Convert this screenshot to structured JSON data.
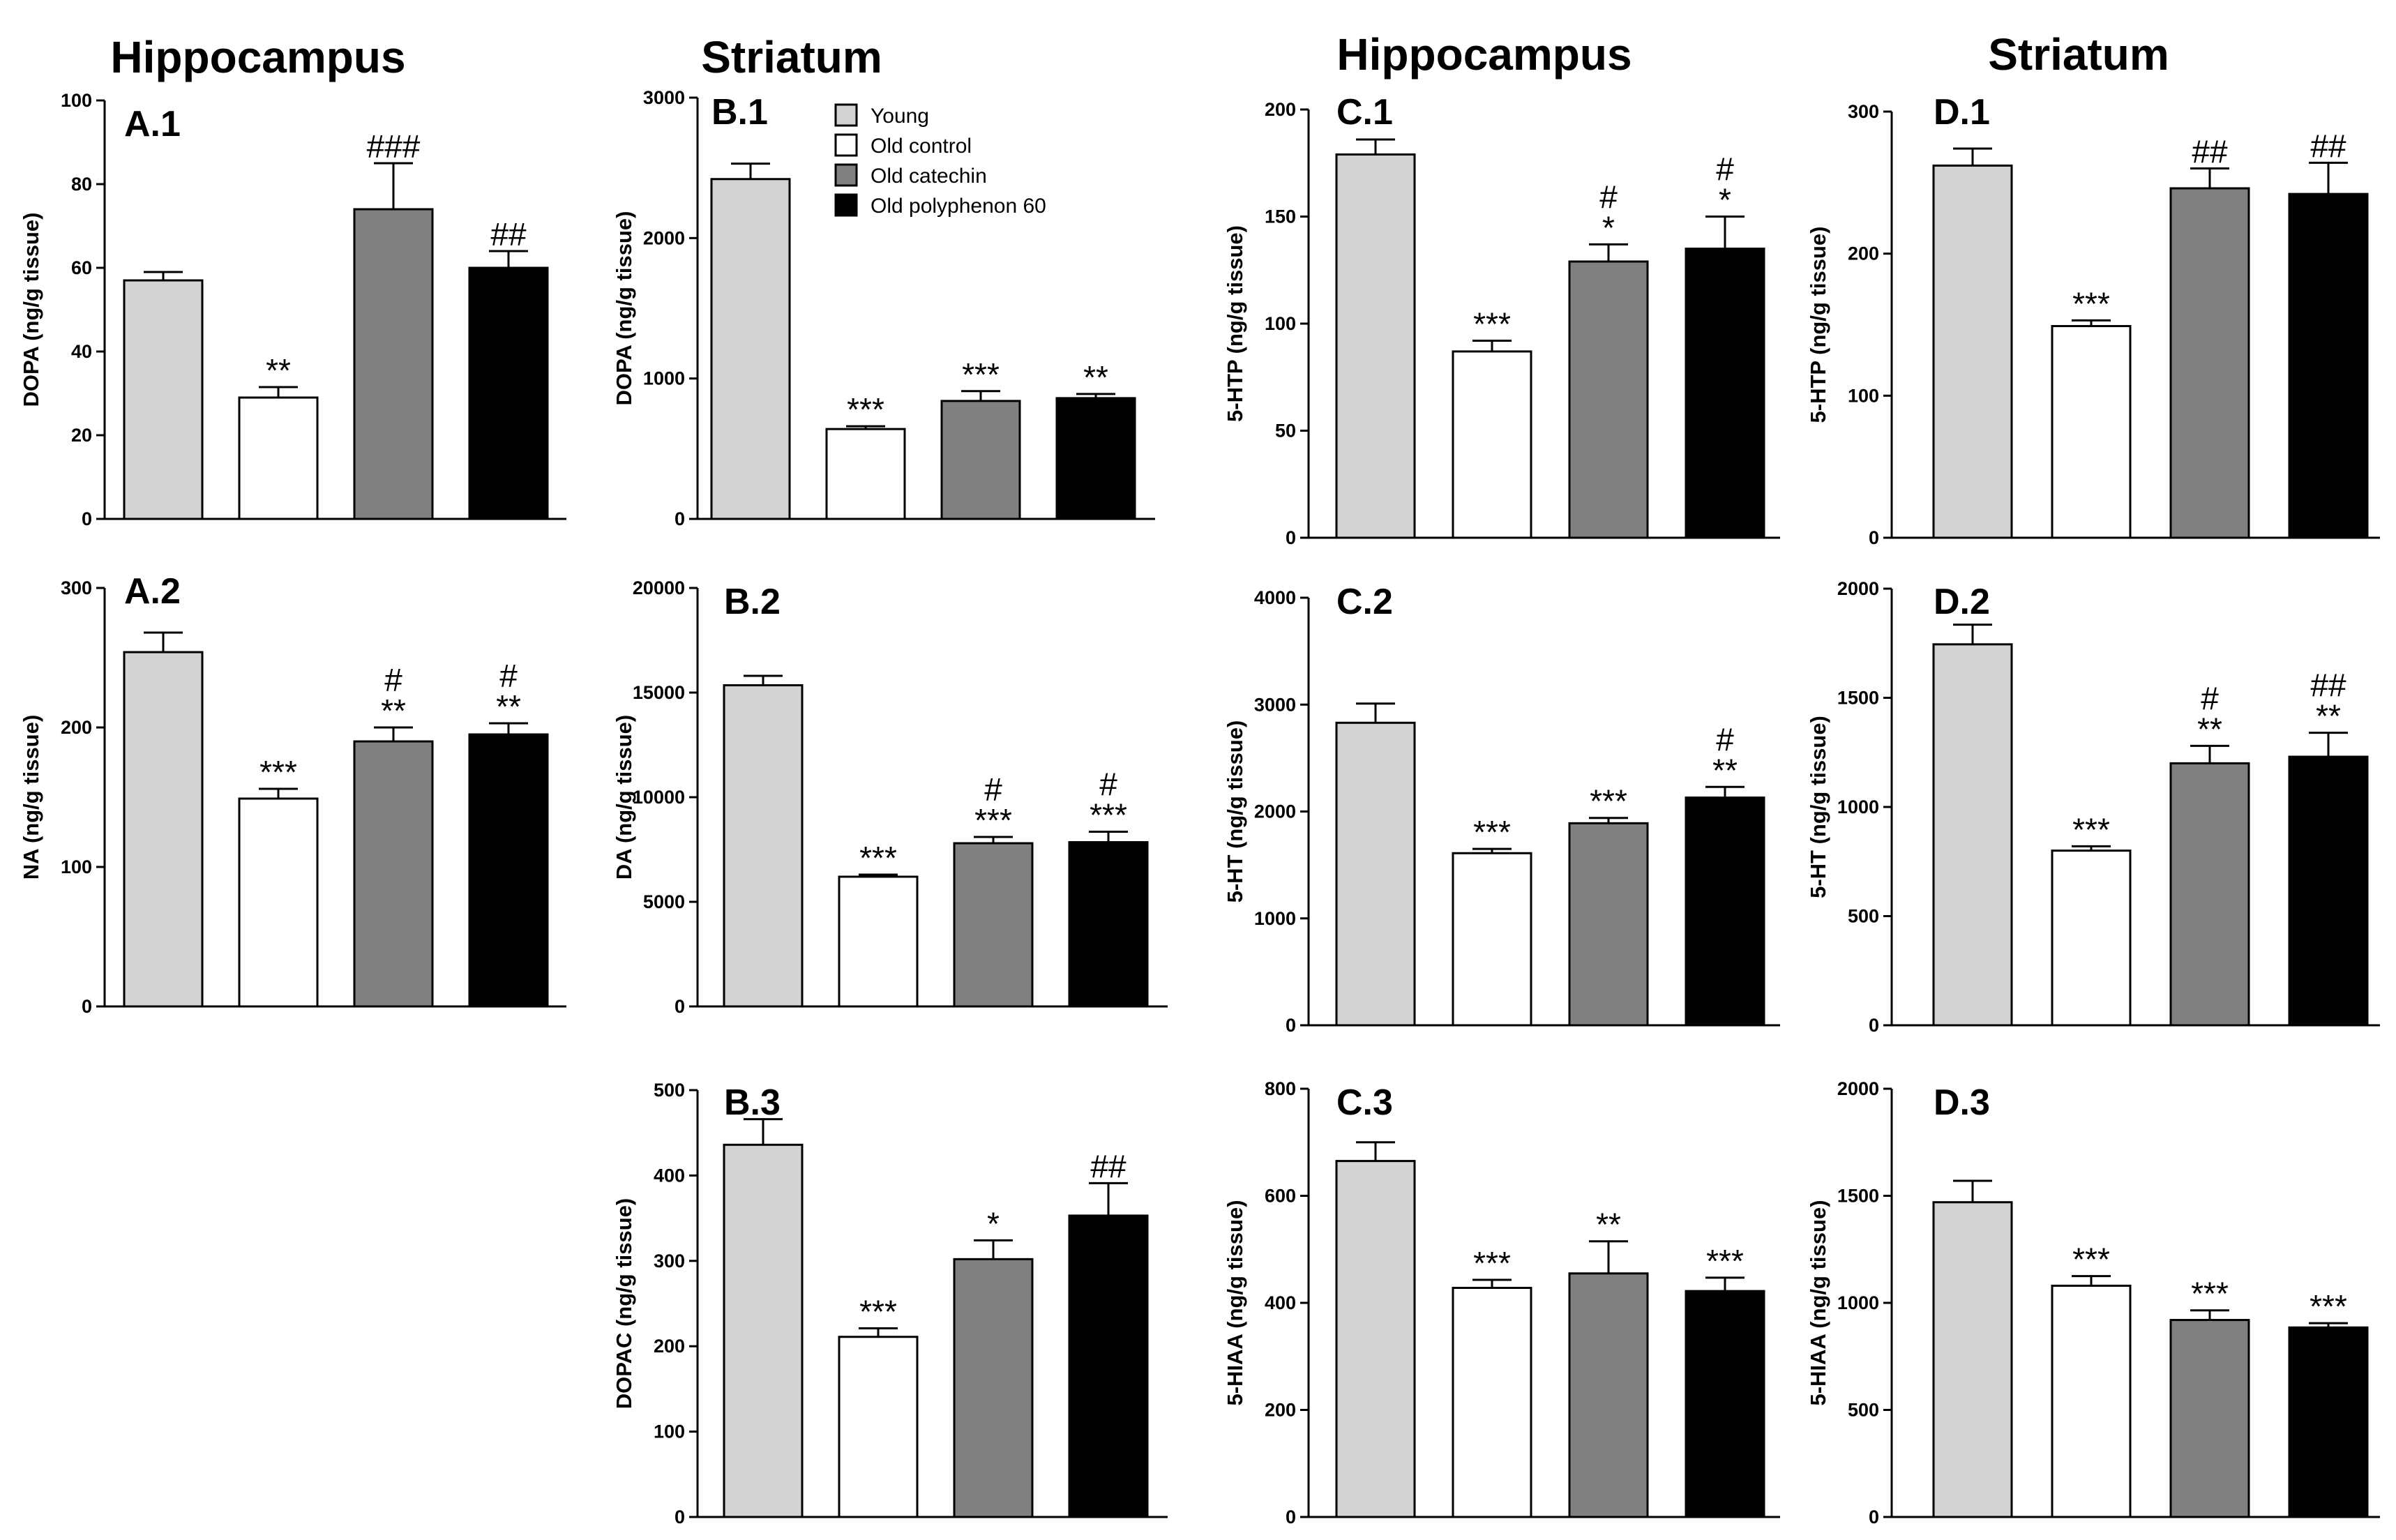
{
  "section_titles": [
    "Hippocampus",
    "Striatum",
    "Hippocampus",
    "Striatum"
  ],
  "legend": [
    {
      "name": "Young",
      "color": "#d3d3d3"
    },
    {
      "name": "Old control",
      "color": "#ffffff"
    },
    {
      "name": "Old catechin",
      "color": "#808080"
    },
    {
      "name": "Old polyphenon 60",
      "color": "#000000"
    }
  ],
  "chart_data": [
    {
      "id": "A.1",
      "type": "bar",
      "ylabel": "DOPA (ng/g tissue)",
      "ylim": [
        0,
        100
      ],
      "yticks": [
        0,
        20,
        40,
        60,
        80,
        100
      ],
      "categories": [
        "Young",
        "Old control",
        "Old catechin",
        "Old polyphenon 60"
      ],
      "values": [
        57,
        29,
        74,
        60
      ],
      "errors": [
        2,
        2.5,
        11,
        4
      ],
      "annotations": [
        [],
        [
          "**"
        ],
        [
          "###"
        ],
        [
          "##"
        ]
      ]
    },
    {
      "id": "A.2",
      "type": "bar",
      "ylabel": "NA (ng/g tissue)",
      "ylim": [
        0,
        300
      ],
      "yticks": [
        0,
        100,
        200,
        300
      ],
      "categories": [
        "Young",
        "Old control",
        "Old catechin",
        "Old polyphenon 60"
      ],
      "values": [
        254,
        149,
        190,
        195
      ],
      "errors": [
        14,
        7,
        10,
        8
      ],
      "annotations": [
        [],
        [
          "***"
        ],
        [
          "#",
          "**"
        ],
        [
          "#",
          "**"
        ]
      ]
    },
    {
      "id": "B.1",
      "type": "bar",
      "ylabel": "DOPA (ng/g tissue)",
      "ylim": [
        0,
        3000
      ],
      "yticks": [
        0,
        1000,
        2000,
        3000
      ],
      "categories": [
        "Young",
        "Old control",
        "Old catechin",
        "Old polyphenon 60"
      ],
      "values": [
        2420,
        640,
        840,
        860
      ],
      "errors": [
        110,
        20,
        70,
        30
      ],
      "annotations": [
        [],
        [
          "***"
        ],
        [
          "***"
        ],
        [
          "**"
        ]
      ]
    },
    {
      "id": "B.2",
      "type": "bar",
      "ylabel": "DA (ng/g tissue)",
      "ylim": [
        0,
        20000
      ],
      "yticks": [
        0,
        5000,
        10000,
        15000,
        20000
      ],
      "categories": [
        "Young",
        "Old control",
        "Old catechin",
        "Old polyphenon 60"
      ],
      "values": [
        15350,
        6200,
        7800,
        7850
      ],
      "errors": [
        450,
        100,
        300,
        500
      ],
      "annotations": [
        [],
        [
          "***"
        ],
        [
          "#",
          "***"
        ],
        [
          "#",
          "***"
        ]
      ]
    },
    {
      "id": "B.3",
      "type": "bar",
      "ylabel": "DOPAC (ng/g tissue)",
      "ylim": [
        0,
        500
      ],
      "yticks": [
        0,
        100,
        200,
        300,
        400,
        500
      ],
      "categories": [
        "Young",
        "Old control",
        "Old catechin",
        "Old polyphenon 60"
      ],
      "values": [
        436,
        211,
        302,
        353
      ],
      "errors": [
        30,
        10,
        22,
        38
      ],
      "annotations": [
        [],
        [
          "***"
        ],
        [
          "*"
        ],
        [
          "##"
        ]
      ]
    },
    {
      "id": "C.1",
      "type": "bar",
      "ylabel": "5-HTP (ng/g tissue)",
      "ylim": [
        0,
        200
      ],
      "yticks": [
        0,
        50,
        100,
        150,
        200
      ],
      "categories": [
        "Young",
        "Old control",
        "Old catechin",
        "Old polyphenon 60"
      ],
      "values": [
        179,
        87,
        129,
        135
      ],
      "errors": [
        7,
        5,
        8,
        15
      ],
      "annotations": [
        [],
        [
          "***"
        ],
        [
          "#",
          "*"
        ],
        [
          "#",
          "*"
        ]
      ]
    },
    {
      "id": "C.2",
      "type": "bar",
      "ylabel": "5-HT (ng/g tissue)",
      "ylim": [
        0,
        4000
      ],
      "yticks": [
        0,
        1000,
        2000,
        3000,
        4000
      ],
      "categories": [
        "Young",
        "Old control",
        "Old catechin",
        "Old polyphenon 60"
      ],
      "values": [
        2830,
        1610,
        1890,
        2130
      ],
      "errors": [
        180,
        40,
        50,
        100
      ],
      "annotations": [
        [],
        [
          "***"
        ],
        [
          "***"
        ],
        [
          "#",
          "**"
        ]
      ]
    },
    {
      "id": "C.3",
      "type": "bar",
      "ylabel": "5-HIAA (ng/g tissue)",
      "ylim": [
        0,
        800
      ],
      "yticks": [
        0,
        200,
        400,
        600,
        800
      ],
      "categories": [
        "Young",
        "Old control",
        "Old catechin",
        "Old polyphenon 60"
      ],
      "values": [
        665,
        428,
        455,
        422
      ],
      "errors": [
        35,
        15,
        60,
        25
      ],
      "annotations": [
        [],
        [
          "***"
        ],
        [
          "**"
        ],
        [
          "***"
        ]
      ]
    },
    {
      "id": "D.1",
      "type": "bar",
      "ylabel": "5-HTP (ng/g tissue)",
      "ylim": [
        0,
        300
      ],
      "yticks": [
        0,
        100,
        200,
        300
      ],
      "categories": [
        "Young",
        "Old control",
        "Old catechin",
        "Old polyphenon 60"
      ],
      "values": [
        262,
        149,
        246,
        242
      ],
      "errors": [
        12,
        4,
        14,
        22
      ],
      "annotations": [
        [],
        [
          "***"
        ],
        [
          "##"
        ],
        [
          "##"
        ]
      ]
    },
    {
      "id": "D.2",
      "type": "bar",
      "ylabel": "5-HT (ng/g tissue)",
      "ylim": [
        0,
        2000
      ],
      "yticks": [
        0,
        500,
        1000,
        1500,
        2000
      ],
      "categories": [
        "Young",
        "Old control",
        "Old catechin",
        "Old polyphenon 60"
      ],
      "values": [
        1745,
        800,
        1200,
        1230
      ],
      "errors": [
        90,
        20,
        80,
        110
      ],
      "annotations": [
        [],
        [
          "***"
        ],
        [
          "#",
          "**"
        ],
        [
          "##",
          "**"
        ]
      ]
    },
    {
      "id": "D.3",
      "type": "bar",
      "ylabel": "5-HIAA (ng/g tissue)",
      "ylim": [
        0,
        2000
      ],
      "yticks": [
        0,
        500,
        1000,
        1500,
        2000
      ],
      "categories": [
        "Young",
        "Old control",
        "Old catechin",
        "Old polyphenon 60"
      ],
      "values": [
        1470,
        1080,
        920,
        885
      ],
      "errors": [
        100,
        45,
        45,
        20
      ],
      "annotations": [
        [],
        [
          "***"
        ],
        [
          "***"
        ],
        [
          "***"
        ]
      ]
    }
  ]
}
